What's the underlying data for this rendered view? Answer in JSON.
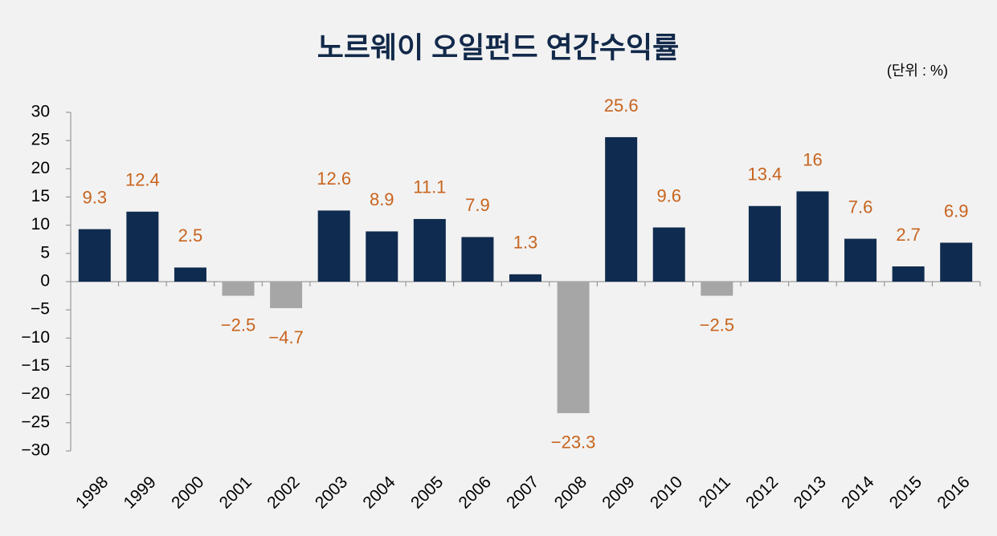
{
  "chart_data": {
    "type": "bar",
    "title": "노르웨이 오일펀드 연간수익률",
    "unit_label": "(단위 : %)",
    "categories": [
      "1998",
      "1999",
      "2000",
      "2001",
      "2002",
      "2003",
      "2004",
      "2005",
      "2006",
      "2007",
      "2008",
      "2009",
      "2010",
      "2011",
      "2012",
      "2013",
      "2014",
      "2015",
      "2016"
    ],
    "values": [
      9.3,
      12.4,
      2.5,
      -2.5,
      -4.7,
      12.6,
      8.9,
      11.1,
      7.9,
      1.3,
      -23.3,
      25.6,
      9.6,
      -2.5,
      13.4,
      16,
      7.6,
      2.7,
      6.9
    ],
    "value_labels": [
      "9.3",
      "12.4",
      "2.5",
      "−2.5",
      "−4.7",
      "12.6",
      "8.9",
      "11.1",
      "7.9",
      "1.3",
      "−23.3",
      "25.6",
      "9.6",
      "−2.5",
      "13.4",
      "16",
      "7.6",
      "2.7",
      "6.9"
    ],
    "color": "#0f2b4f",
    "negative_color": "#a6a6a6",
    "label_color": "#c8641e",
    "ylim": [
      -30,
      30
    ],
    "yticks": [
      30,
      25,
      20,
      15,
      10,
      5,
      0,
      {
        "value": -5,
        "label": "−5"
      },
      {
        "value": -10,
        "label": "−10"
      },
      {
        "value": -15,
        "label": "−15"
      },
      {
        "value": -20,
        "label": "−20"
      },
      {
        "value": -25,
        "label": "−25"
      },
      {
        "value": -30,
        "label": "−30"
      }
    ],
    "grid": false
  }
}
